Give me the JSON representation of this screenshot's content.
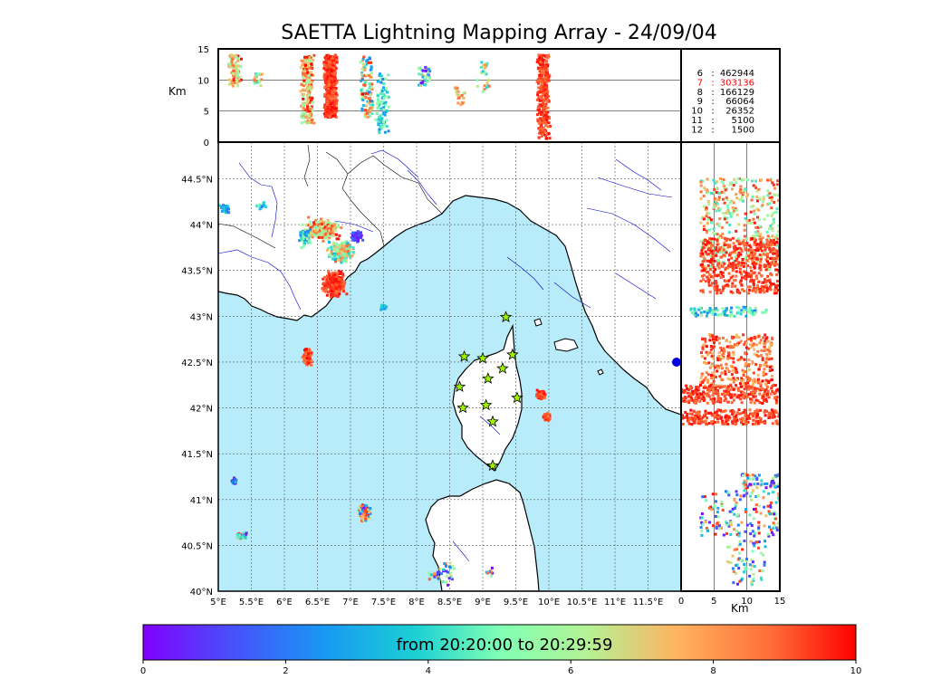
{
  "chart_data": {
    "type": "scatter",
    "title": "SAETTA Lightning Mapping Array - 24/09/04",
    "map": {
      "lon_range": [
        5.0,
        12.0
      ],
      "lat_range": [
        40.0,
        44.9
      ],
      "lon_tick_labels": [
        "5°E",
        "5.5°E",
        "6°E",
        "6.5°E",
        "7°E",
        "7.5°E",
        "8°E",
        "8.5°E",
        "9°E",
        "9.5°E",
        "10°E",
        "10.5°E",
        "11°E",
        "11.5°E"
      ],
      "lat_tick_labels": [
        "40°N",
        "40.5°N",
        "41°N",
        "41.5°N",
        "42°N",
        "42.5°N",
        "43°N",
        "43.5°N",
        "44°N",
        "44.5°N"
      ],
      "sea_color": "#b8ecfb",
      "land_color": "#ffffff",
      "river_color": "#0000cc",
      "stations": [
        {
          "lon": 9.35,
          "lat": 42.99
        },
        {
          "lon": 8.72,
          "lat": 42.56
        },
        {
          "lon": 9.0,
          "lat": 42.54
        },
        {
          "lon": 9.45,
          "lat": 42.58
        },
        {
          "lon": 9.3,
          "lat": 42.43
        },
        {
          "lon": 9.08,
          "lat": 42.32
        },
        {
          "lon": 8.65,
          "lat": 42.23
        },
        {
          "lon": 9.52,
          "lat": 42.11
        },
        {
          "lon": 8.7,
          "lat": 42.0
        },
        {
          "lon": 9.05,
          "lat": 42.03
        },
        {
          "lon": 9.15,
          "lat": 41.85
        },
        {
          "lon": 9.15,
          "lat": 41.37
        }
      ],
      "station_color": "#9ef200",
      "clusters": [
        {
          "lon": 6.55,
          "lat": 43.95,
          "dlon": 0.35,
          "dlat": 0.15,
          "n": 240,
          "t": [
            5,
            10
          ]
        },
        {
          "lon": 6.85,
          "lat": 43.7,
          "dlon": 0.25,
          "dlat": 0.15,
          "n": 180,
          "t": [
            3,
            9
          ]
        },
        {
          "lon": 7.1,
          "lat": 43.87,
          "dlon": 0.12,
          "dlat": 0.08,
          "n": 60,
          "t": [
            0,
            2
          ]
        },
        {
          "lon": 6.75,
          "lat": 43.35,
          "dlon": 0.2,
          "dlat": 0.18,
          "n": 260,
          "t": [
            8.5,
            10
          ]
        },
        {
          "lon": 6.3,
          "lat": 43.85,
          "dlon": 0.12,
          "dlat": 0.12,
          "n": 60,
          "t": [
            2,
            6
          ]
        },
        {
          "lon": 6.35,
          "lat": 42.55,
          "dlon": 0.08,
          "dlat": 0.12,
          "n": 120,
          "t": [
            8.5,
            10
          ]
        },
        {
          "lon": 9.88,
          "lat": 42.15,
          "dlon": 0.09,
          "dlat": 0.06,
          "n": 90,
          "t": [
            8.5,
            10
          ]
        },
        {
          "lon": 9.97,
          "lat": 41.9,
          "dlon": 0.07,
          "dlat": 0.05,
          "n": 60,
          "t": [
            8.5,
            10
          ]
        },
        {
          "lon": 7.2,
          "lat": 40.85,
          "dlon": 0.12,
          "dlat": 0.12,
          "n": 120,
          "t": [
            0,
            10
          ]
        },
        {
          "lon": 5.35,
          "lat": 40.6,
          "dlon": 0.1,
          "dlat": 0.05,
          "n": 60,
          "t": [
            0,
            10
          ]
        },
        {
          "lon": 5.25,
          "lat": 41.2,
          "dlon": 0.05,
          "dlat": 0.05,
          "n": 25,
          "t": [
            0,
            4
          ]
        },
        {
          "lon": 5.1,
          "lat": 44.18,
          "dlon": 0.1,
          "dlat": 0.06,
          "n": 30,
          "t": [
            2,
            5
          ]
        },
        {
          "lon": 5.65,
          "lat": 44.2,
          "dlon": 0.12,
          "dlat": 0.05,
          "n": 20,
          "t": [
            2,
            5
          ]
        },
        {
          "lon": 7.5,
          "lat": 43.1,
          "dlon": 0.06,
          "dlat": 0.05,
          "n": 25,
          "t": [
            2,
            4
          ]
        },
        {
          "lon": 8.4,
          "lat": 40.2,
          "dlon": 0.3,
          "dlat": 0.2,
          "n": 40,
          "t": [
            0,
            10
          ]
        },
        {
          "lon": 9.1,
          "lat": 40.2,
          "dlon": 0.1,
          "dlat": 0.1,
          "n": 12,
          "t": [
            0,
            10
          ]
        }
      ]
    },
    "height_lon": {
      "ylabel": "Km",
      "ylim": [
        0,
        15
      ],
      "yticks": [
        "0",
        "5",
        "10",
        "15"
      ],
      "columns": [
        {
          "lon": 5.25,
          "h": [
            9,
            14
          ],
          "n": 70,
          "t": [
            5,
            10
          ]
        },
        {
          "lon": 5.6,
          "h": [
            9,
            11
          ],
          "n": 20,
          "t": [
            4,
            9
          ]
        },
        {
          "lon": 6.7,
          "h": [
            4,
            14
          ],
          "n": 500,
          "t": [
            8.5,
            10
          ]
        },
        {
          "lon": 6.35,
          "h": [
            3,
            14
          ],
          "n": 200,
          "t": [
            5,
            10
          ]
        },
        {
          "lon": 7.25,
          "h": [
            4,
            14
          ],
          "n": 120,
          "t": [
            2,
            10
          ]
        },
        {
          "lon": 7.48,
          "h": [
            1.5,
            11
          ],
          "n": 90,
          "t": [
            2,
            6
          ]
        },
        {
          "lon": 8.1,
          "h": [
            9,
            13
          ],
          "n": 35,
          "t": [
            0,
            8
          ]
        },
        {
          "lon": 8.65,
          "h": [
            6,
            9
          ],
          "n": 20,
          "t": [
            6,
            9
          ]
        },
        {
          "lon": 9.0,
          "h": [
            8,
            13
          ],
          "n": 25,
          "t": [
            3,
            9
          ]
        },
        {
          "lon": 9.92,
          "h": [
            0.5,
            14
          ],
          "n": 320,
          "t": [
            8.5,
            10
          ]
        }
      ]
    },
    "lat_height": {
      "xlabel": "Km",
      "xlim": [
        0,
        15
      ],
      "xticks": [
        "0",
        "5",
        "10",
        "15"
      ],
      "bands": [
        {
          "lat": 44.0,
          "dlat": 0.5,
          "h": [
            3,
            15
          ],
          "n": 400,
          "t": [
            4,
            10
          ]
        },
        {
          "lat": 43.55,
          "dlat": 0.3,
          "h": [
            3,
            15
          ],
          "n": 450,
          "t": [
            8.5,
            10
          ]
        },
        {
          "lat": 43.05,
          "dlat": 0.05,
          "h": [
            1,
            13
          ],
          "n": 90,
          "t": [
            2,
            6
          ]
        },
        {
          "lat": 42.5,
          "dlat": 0.3,
          "h": [
            3,
            14
          ],
          "n": 320,
          "t": [
            7,
            10
          ]
        },
        {
          "lat": 42.15,
          "dlat": 0.1,
          "h": [
            0,
            15
          ],
          "n": 260,
          "t": [
            8.5,
            10
          ]
        },
        {
          "lat": 41.9,
          "dlat": 0.08,
          "h": [
            0,
            15
          ],
          "n": 220,
          "t": [
            8.5,
            10
          ]
        },
        {
          "lat": 41.2,
          "dlat": 0.08,
          "h": [
            9,
            15
          ],
          "n": 60,
          "t": [
            0,
            10
          ]
        },
        {
          "lat": 40.85,
          "dlat": 0.25,
          "h": [
            3,
            15
          ],
          "n": 160,
          "t": [
            0,
            10
          ]
        },
        {
          "lat": 40.3,
          "dlat": 0.25,
          "h": [
            7,
            13
          ],
          "n": 70,
          "t": [
            0,
            10
          ]
        }
      ]
    },
    "counts": [
      {
        "label": "6",
        "value": "462944"
      },
      {
        "label": "7",
        "value": "303136",
        "color": "#ff0000"
      },
      {
        "label": "8",
        "value": "166129"
      },
      {
        "label": "9",
        "value": "66064"
      },
      {
        "label": "10",
        "value": "26352"
      },
      {
        "label": "11",
        "value": "5100"
      },
      {
        "label": "12",
        "value": "1500"
      }
    ],
    "colorbar": {
      "ticks": [
        "0",
        "2",
        "4",
        "6",
        "8",
        "10"
      ],
      "range": [
        0,
        10
      ],
      "label": "from 20:20:00 to 20:29:59",
      "colormap": "rainbow"
    }
  }
}
